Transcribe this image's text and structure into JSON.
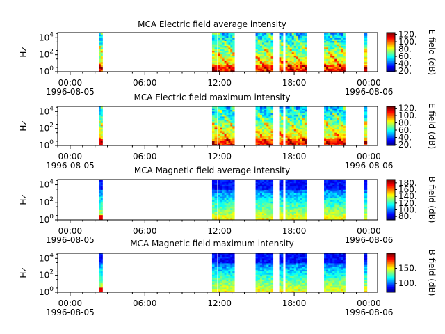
{
  "chart_data": [
    {
      "type": "heatmap",
      "title": "MCA  Electric field average intensity",
      "ylabel": "Hz",
      "colorbar_label": "E field (dB)",
      "colorbar_range": [
        18,
        125
      ],
      "colorbar_ticks": [
        "20.",
        "40.",
        "60.",
        "80.",
        "100.",
        "120."
      ],
      "variant": "E",
      "data_intervals_hours": [
        [
          2.3,
          2.6
        ],
        [
          11.4,
          11.8
        ],
        [
          11.9,
          13.2
        ],
        [
          14.9,
          16.3
        ],
        [
          16.8,
          17.1
        ],
        [
          17.3,
          19.0
        ],
        [
          20.4,
          22.1
        ],
        [
          23.6,
          23.85
        ]
      ]
    },
    {
      "type": "heatmap",
      "title": "MCA  Electric field maximum intensity",
      "ylabel": "Hz",
      "colorbar_label": "E field (dB)",
      "colorbar_range": [
        18,
        125
      ],
      "colorbar_ticks": [
        "20.",
        "40.",
        "60.",
        "80.",
        "100.",
        "120."
      ],
      "variant": "E",
      "data_intervals_hours": [
        [
          2.3,
          2.6
        ],
        [
          11.4,
          11.8
        ],
        [
          11.9,
          13.2
        ],
        [
          14.9,
          16.3
        ],
        [
          16.8,
          17.1
        ],
        [
          17.3,
          19.0
        ],
        [
          20.4,
          22.1
        ],
        [
          23.6,
          23.85
        ]
      ]
    },
    {
      "type": "heatmap",
      "title": "MCA  Magnetic field average intensity",
      "ylabel": "Hz",
      "colorbar_label": "B field (dB)",
      "colorbar_range": [
        70,
        190
      ],
      "colorbar_ticks": [
        "80.",
        "100.",
        "120.",
        "140.",
        "160.",
        "180."
      ],
      "variant": "B",
      "data_intervals_hours": [
        [
          2.3,
          2.6
        ],
        [
          11.4,
          11.8
        ],
        [
          11.9,
          13.2
        ],
        [
          14.9,
          16.3
        ],
        [
          16.8,
          17.1
        ],
        [
          17.3,
          19.0
        ],
        [
          20.4,
          22.1
        ],
        [
          23.6,
          23.85
        ]
      ]
    },
    {
      "type": "heatmap",
      "title": "MCA  Magnetic field maximum intensity",
      "ylabel": "Hz",
      "colorbar_label": "B field (dB)",
      "colorbar_range": [
        70,
        200
      ],
      "colorbar_ticks": [
        "100.",
        "150."
      ],
      "variant": "B",
      "data_intervals_hours": [
        [
          2.3,
          2.6
        ],
        [
          11.4,
          11.8
        ],
        [
          11.9,
          13.2
        ],
        [
          14.9,
          16.3
        ],
        [
          16.8,
          17.1
        ],
        [
          17.3,
          19.0
        ],
        [
          20.4,
          22.1
        ],
        [
          23.6,
          23.85
        ]
      ]
    }
  ],
  "axes": {
    "x_range_hours": [
      -1,
      24.7
    ],
    "x_ticks": [
      {
        "hour": 0,
        "label": "00:00",
        "date": "1996-08-05"
      },
      {
        "hour": 6,
        "label": "06:00",
        "date": ""
      },
      {
        "hour": 12,
        "label": "12:00",
        "date": ""
      },
      {
        "hour": 18,
        "label": "18:00",
        "date": ""
      },
      {
        "hour": 24,
        "label": "00:00",
        "date": "1996-08-06"
      }
    ],
    "y_log_range": [
      0,
      4.6
    ],
    "y_ticks": [
      {
        "exp": 0,
        "base": "10",
        "power": "0"
      },
      {
        "exp": 2,
        "base": "10",
        "power": "2"
      },
      {
        "exp": 4,
        "base": "10",
        "power": "4"
      }
    ]
  }
}
